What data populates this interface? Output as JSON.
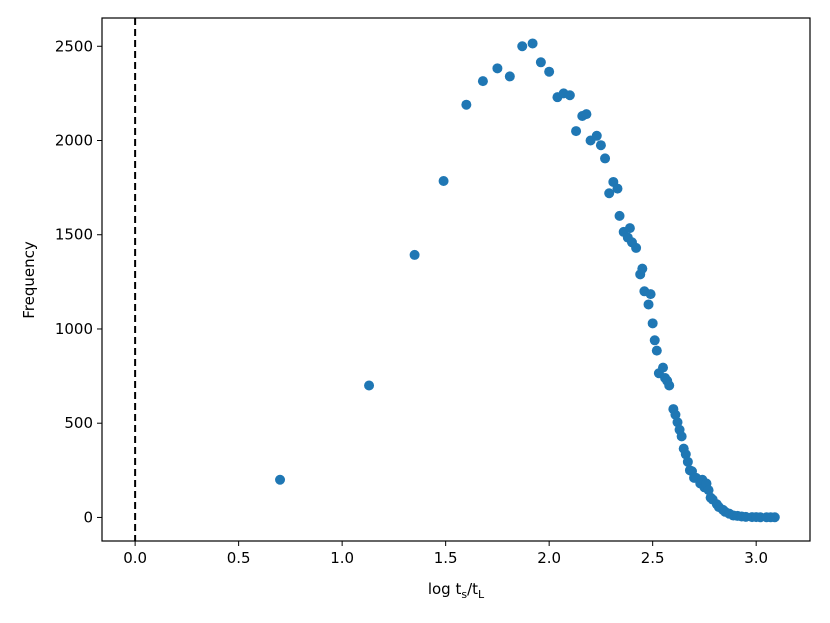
{
  "chart_data": {
    "type": "scatter",
    "color": "#1f77b4",
    "xlabel": [
      "log t",
      "s",
      "/t",
      "L"
    ],
    "ylabel": "Frequency",
    "xlim": [
      -0.16,
      3.26
    ],
    "ylim": [
      -125,
      2650
    ],
    "xticks": [
      {
        "value": 0,
        "label": "0.0"
      },
      0.5,
      {
        "value": 1,
        "label": "1.0"
      },
      1.5,
      {
        "value": 2,
        "label": "2.0"
      },
      2.5,
      {
        "value": 3,
        "label": "3.0"
      }
    ],
    "yticks": [
      0,
      500,
      1000,
      1500,
      2000,
      2500
    ],
    "vline": {
      "x": 0,
      "color": "#000000",
      "dashed": true
    },
    "x": [
      0.7,
      1.13,
      1.35,
      1.49,
      1.6,
      1.68,
      1.75,
      1.81,
      1.87,
      1.92,
      1.96,
      2.0,
      2.04,
      2.07,
      2.1,
      2.13,
      2.16,
      2.18,
      2.2,
      2.23,
      2.25,
      2.27,
      2.29,
      2.31,
      2.33,
      2.34,
      2.36,
      2.38,
      2.39,
      2.4,
      2.42,
      2.44,
      2.45,
      2.46,
      2.48,
      2.49,
      2.5,
      2.51,
      2.52,
      2.53,
      2.55,
      2.56,
      2.57,
      2.58,
      2.6,
      2.61,
      2.62,
      2.63,
      2.64,
      2.65,
      2.66,
      2.67,
      2.68,
      2.69,
      2.7,
      2.71,
      2.73,
      2.74,
      2.75,
      2.76,
      2.77,
      2.78,
      2.79,
      2.81,
      2.82,
      2.84,
      2.85,
      2.87,
      2.89,
      2.91,
      2.93,
      2.95,
      2.98,
      3.0,
      3.02,
      3.05,
      3.07,
      3.09
    ],
    "values": [
      200,
      700,
      1393,
      1785,
      2190,
      2315,
      2383,
      2340,
      2500,
      2515,
      2415,
      2365,
      2230,
      2250,
      2240,
      2050,
      2130,
      2140,
      2000,
      2025,
      1975,
      1905,
      1720,
      1780,
      1745,
      1600,
      1515,
      1485,
      1535,
      1460,
      1430,
      1290,
      1320,
      1200,
      1130,
      1185,
      1030,
      940,
      885,
      765,
      795,
      740,
      725,
      700,
      575,
      545,
      505,
      465,
      430,
      365,
      335,
      295,
      250,
      245,
      210,
      210,
      180,
      200,
      160,
      180,
      145,
      105,
      95,
      70,
      55,
      40,
      30,
      20,
      10,
      8,
      5,
      3,
      2,
      2,
      1,
      1,
      1,
      1
    ]
  }
}
